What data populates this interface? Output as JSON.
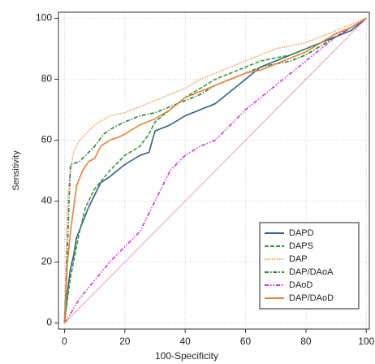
{
  "chart_data": {
    "type": "line",
    "x_label": "100-Specificity",
    "y_label": "Sensitivity",
    "xlim": [
      -2,
      101
    ],
    "ylim": [
      -2,
      102
    ],
    "xticks": [
      0,
      20,
      40,
      60,
      80,
      100
    ],
    "yticks": [
      0,
      20,
      40,
      60,
      80,
      100
    ],
    "grid": true,
    "legend": "lower right",
    "series": [
      {
        "name": "DAPD",
        "color": "#2f5f8c",
        "dash": "solid",
        "x": [
          0,
          1,
          2,
          3,
          4,
          6,
          8,
          10,
          12,
          15,
          20,
          25,
          28,
          30,
          35,
          40,
          45,
          50,
          55,
          60,
          65,
          70,
          75,
          80,
          85,
          90,
          95,
          100
        ],
        "values": [
          0,
          10,
          18,
          22,
          28,
          33,
          38,
          42,
          46,
          48,
          52,
          55,
          56,
          63,
          65,
          68,
          70,
          72,
          76,
          80,
          84,
          86,
          88,
          90,
          92,
          94,
          96,
          100
        ]
      },
      {
        "name": "DAPS",
        "color": "#3a9a3a",
        "dash": "dashed",
        "x": [
          0,
          1,
          2,
          3,
          5,
          7,
          10,
          15,
          20,
          25,
          28,
          30,
          35,
          40,
          45,
          50,
          55,
          60,
          65,
          70,
          75,
          80,
          85,
          90,
          95,
          100
        ],
        "values": [
          0,
          8,
          15,
          20,
          30,
          38,
          44,
          50,
          55,
          58,
          62,
          66,
          70,
          74,
          77,
          80,
          82,
          84,
          86,
          87,
          88,
          90,
          92,
          95,
          97,
          100
        ]
      },
      {
        "name": "DAP",
        "color": "#e8a060",
        "dash": "dotted",
        "x": [
          0,
          0.5,
          1,
          2,
          3,
          5,
          8,
          10,
          15,
          20,
          25,
          30,
          35,
          40,
          45,
          50,
          55,
          60,
          65,
          70,
          75,
          80,
          85,
          90,
          95,
          100
        ],
        "values": [
          0,
          20,
          40,
          50,
          56,
          60,
          63,
          65,
          68,
          69,
          71,
          73,
          75,
          77,
          80,
          82,
          84,
          86,
          88,
          90,
          91,
          92,
          94,
          96,
          98,
          100
        ]
      },
      {
        "name": "DAP/DAoA",
        "color": "#2e7d32",
        "dash": "dashdot",
        "x": [
          0,
          0.5,
          1,
          1.5,
          2,
          5,
          7,
          10,
          13,
          16,
          20,
          25,
          30,
          35,
          40,
          45,
          50,
          55,
          60,
          65,
          70,
          75,
          80,
          85,
          90,
          95,
          100
        ],
        "values": [
          0,
          12,
          25,
          40,
          52,
          53,
          55,
          58,
          62,
          64,
          66,
          68,
          69,
          71,
          73,
          75,
          78,
          80,
          82,
          84,
          85,
          86,
          88,
          91,
          94,
          97,
          100
        ]
      },
      {
        "name": "DAoD",
        "color": "#cc33cc",
        "dash": "dashdotdot",
        "x": [
          0,
          2,
          5,
          10,
          15,
          20,
          25,
          30,
          35,
          40,
          45,
          50,
          55,
          60,
          65,
          70,
          75,
          80,
          85,
          90,
          95,
          100
        ],
        "values": [
          0,
          3,
          8,
          14,
          20,
          25,
          30,
          40,
          50,
          55,
          58,
          60,
          65,
          70,
          74,
          78,
          82,
          86,
          90,
          94,
          97,
          100
        ]
      },
      {
        "name": "DAP/DAoD",
        "color": "#e8823a",
        "dash": "solid",
        "x": [
          0,
          0.5,
          1,
          2,
          4,
          6,
          8,
          10,
          12,
          15,
          18,
          20,
          25,
          30,
          35,
          40,
          45,
          50,
          55,
          60,
          65,
          70,
          75,
          80,
          85,
          90,
          95,
          100
        ],
        "values": [
          0,
          10,
          20,
          30,
          45,
          50,
          53,
          54,
          58,
          60,
          61,
          62,
          65,
          67,
          70,
          74,
          76,
          78,
          80,
          82,
          83,
          85,
          87,
          89,
          92,
          95,
          97,
          100
        ]
      }
    ]
  }
}
